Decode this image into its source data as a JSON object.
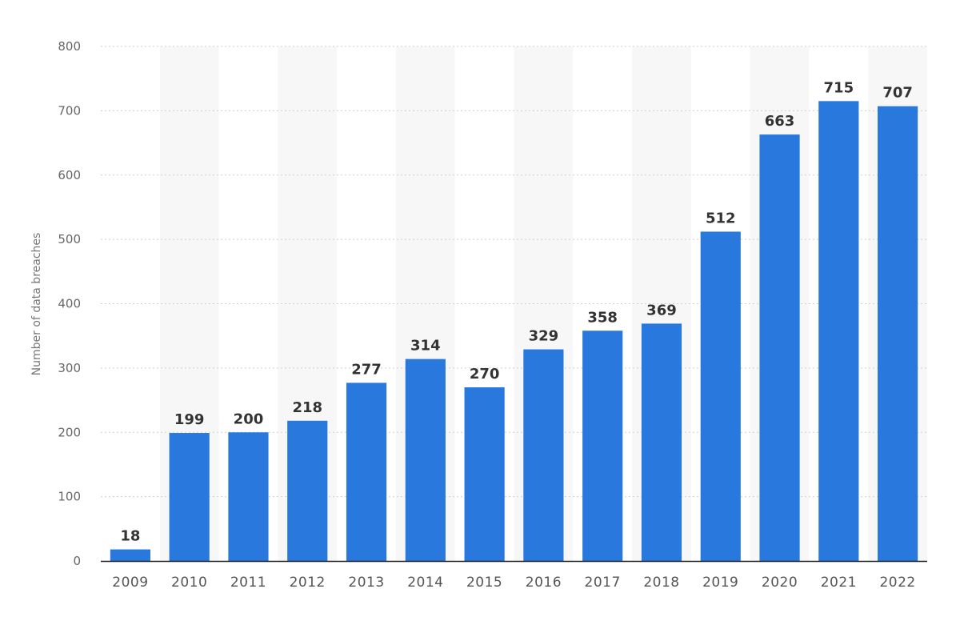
{
  "chart_data": {
    "type": "bar",
    "title": "",
    "xlabel": "",
    "ylabel": "Number of data breaches",
    "categories": [
      "2009",
      "2010",
      "2011",
      "2012",
      "2013",
      "2014",
      "2015",
      "2016",
      "2017",
      "2018",
      "2019",
      "2020",
      "2021",
      "2022"
    ],
    "values": [
      18,
      199,
      200,
      218,
      277,
      314,
      270,
      329,
      358,
      369,
      512,
      663,
      715,
      707
    ],
    "ylim": [
      0,
      800
    ],
    "yticks": [
      0,
      100,
      200,
      300,
      400,
      500,
      600,
      700,
      800
    ],
    "grid": true,
    "legend": "none",
    "colors": {
      "bar": "#2878de",
      "band": "#f7f7f7",
      "grid": "#cfcfcf",
      "axis": "#222222"
    }
  }
}
